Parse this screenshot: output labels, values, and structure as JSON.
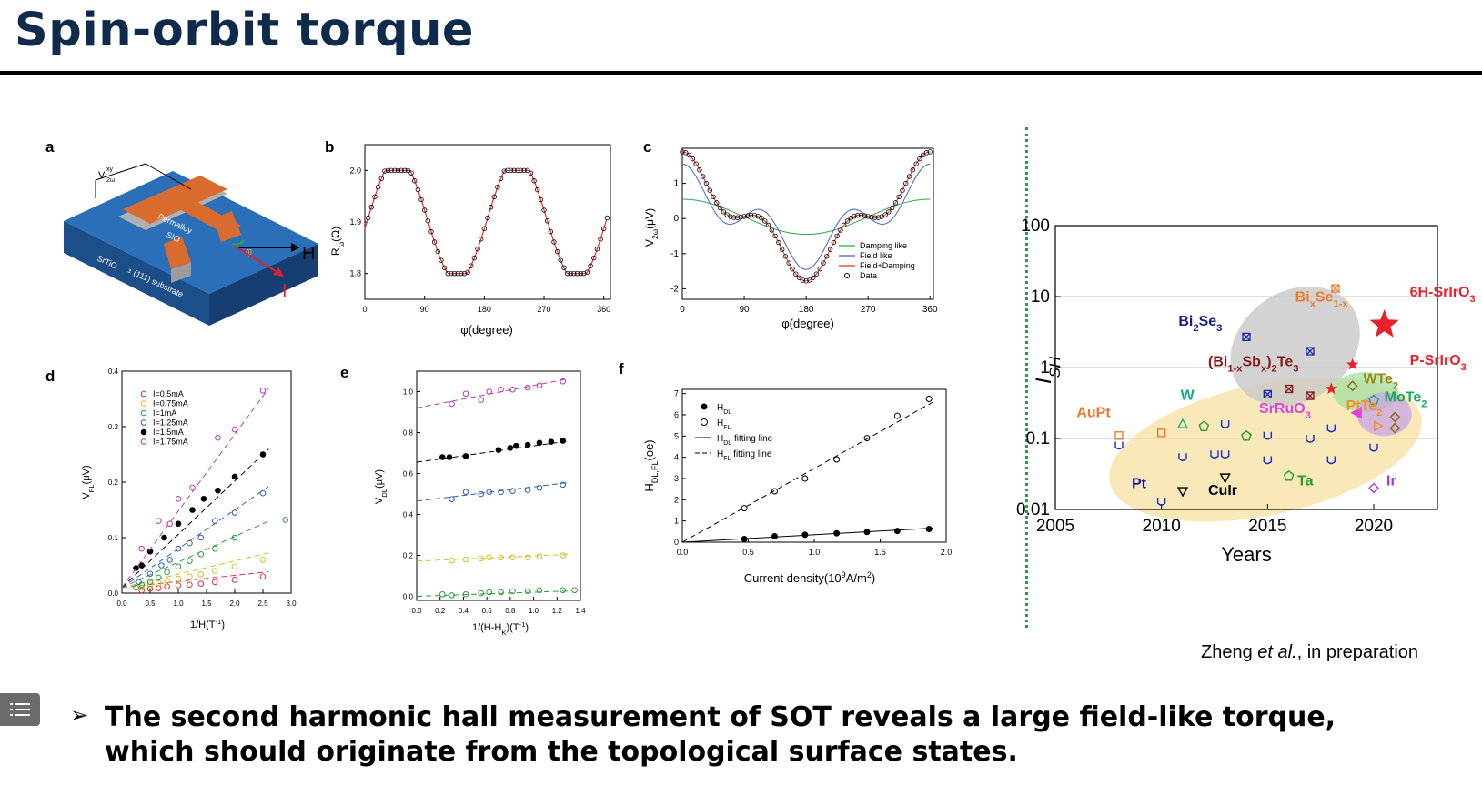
{
  "slide": {
    "title": "Spin-orbit torque",
    "credit_prefix": "Zheng ",
    "credit_italic": "et al.",
    "credit_suffix": ", in preparation",
    "bullet_text": "The second harmonic hall measurement of SOT reveals a large field-like torque, which should originate from the topological surface states.",
    "bullet_marker": "➢"
  },
  "panels": {
    "a": {
      "letter": "a",
      "labels": [
        "V",
        "xy",
        "2ω",
        "Permalloy",
        "SIO",
        "φ",
        "H",
        "I",
        "SrTiO",
        "3",
        "(111) substrate"
      ]
    },
    "b": {
      "letter": "b"
    },
    "c": {
      "letter": "c"
    },
    "d": {
      "letter": "d"
    },
    "e": {
      "letter": "e"
    },
    "f": {
      "letter": "f"
    }
  },
  "colors": {
    "title": "#0f2a4a",
    "separator": "#2c9a48",
    "substrate": "#1c5fa6",
    "film": "#d96b2e",
    "highlight_ellipse": "#f7e0a0"
  },
  "chart_data": [
    {
      "panel": "b",
      "type": "line",
      "xlabel": "φ(degree)",
      "ylabel": "R",
      "ylabel_sub": "ω",
      "ylabel_unit": "(Ω)",
      "xlim": [
        0,
        370
      ],
      "ylim": [
        1.75,
        2.05
      ],
      "xticks": [
        "0",
        "90",
        "180",
        "270",
        "360"
      ],
      "yticks": [
        "1.8",
        "1.9",
        "2.0"
      ],
      "series": [
        {
          "kind": "data-circles",
          "color": "#000"
        },
        {
          "kind": "fit",
          "color": "#e8302a"
        }
      ]
    },
    {
      "panel": "c",
      "type": "line",
      "xlabel": "φ(degree)",
      "ylabel": "V",
      "ylabel_sub": "2ω",
      "ylabel_unit": "(μV)",
      "xlim": [
        0,
        365
      ],
      "ylim": [
        -2.3,
        2.0
      ],
      "xticks": [
        "0",
        "90",
        "180",
        "270",
        "360"
      ],
      "yticks": [
        "-2",
        "-1",
        "0",
        "1"
      ],
      "series": [
        {
          "name": "Damping like",
          "color": "#2ea84a"
        },
        {
          "name": "Field like",
          "color": "#4a5ec8"
        },
        {
          "name": "Field+Damping",
          "color": "#e8302a"
        },
        {
          "name": "Data",
          "color": "#000"
        }
      ]
    },
    {
      "panel": "d",
      "type": "scatter",
      "xlabel": "1/H(T",
      "xlabel_sup": "-1",
      "xlabel_end": ")",
      "ylabel": "V",
      "ylabel_sub": "FL",
      "ylabel_unit": "(μV)",
      "xlim": [
        0,
        3.0
      ],
      "ylim": [
        0,
        0.4
      ],
      "xticks": [
        "0.0",
        "0.5",
        "1.0",
        "1.5",
        "2.0",
        "2.5",
        "3.0"
      ],
      "yticks": [
        "0.0",
        "0.1",
        "0.2",
        "0.3",
        "0.4"
      ],
      "series": [
        {
          "name": "I=0.5mA",
          "color": "#e0333a",
          "filled": false,
          "slope": 0.011,
          "x": [
            0.35,
            0.5,
            0.65,
            0.8,
            1.0,
            1.2,
            1.4,
            1.65,
            2.0,
            2.5
          ],
          "y": [
            0.005,
            0.008,
            0.009,
            0.012,
            0.014,
            0.015,
            0.017,
            0.02,
            0.024,
            0.03
          ]
        },
        {
          "name": "I=0.75mA",
          "color": "#c6c62a",
          "filled": false,
          "slope": 0.024,
          "x": [
            0.35,
            0.5,
            0.65,
            0.8,
            1.0,
            1.2,
            1.4,
            1.65,
            2.0,
            2.5
          ],
          "y": [
            0.01,
            0.014,
            0.018,
            0.022,
            0.026,
            0.03,
            0.034,
            0.04,
            0.048,
            0.06
          ]
        },
        {
          "name": "I=1mA",
          "color": "#2e9a3c",
          "filled": false,
          "slope": 0.046,
          "x": [
            0.25,
            0.35,
            0.5,
            0.65,
            0.8,
            1.0,
            1.2,
            1.4,
            1.65,
            2.0,
            2.9
          ],
          "y": [
            0.01,
            0.015,
            0.02,
            0.028,
            0.038,
            0.048,
            0.058,
            0.07,
            0.08,
            0.1,
            0.132
          ]
        },
        {
          "name": "I=1.25mA",
          "color": "#2d5fb5",
          "filled": false,
          "slope": 0.07,
          "x": [
            0.3,
            0.5,
            0.7,
            0.85,
            1.0,
            1.2,
            1.4,
            1.65,
            2.0,
            2.5
          ],
          "y": [
            0.02,
            0.035,
            0.05,
            0.06,
            0.08,
            0.09,
            0.1,
            0.13,
            0.145,
            0.18
          ]
        },
        {
          "name": "I=1.5mA",
          "color": "#000000",
          "filled": true,
          "slope": 0.096,
          "x": [
            0.25,
            0.35,
            0.5,
            0.75,
            1.0,
            1.25,
            1.45,
            1.7,
            2.0,
            2.5
          ],
          "y": [
            0.045,
            0.05,
            0.075,
            0.1,
            0.125,
            0.15,
            0.17,
            0.185,
            0.21,
            0.25
          ]
        },
        {
          "name": "I=1.75mA",
          "color": "#b83ab0",
          "filled": false,
          "slope": 0.138,
          "x": [
            0.35,
            0.65,
            0.85,
            1.0,
            1.25,
            1.7,
            2.0,
            2.5
          ],
          "y": [
            0.08,
            0.13,
            0.125,
            0.17,
            0.19,
            0.28,
            0.295,
            0.365
          ]
        }
      ]
    },
    {
      "panel": "e",
      "type": "scatter",
      "xlabel": "1/(H-H",
      "xlabel_sub": "K",
      "xlabel_mid": ")(T",
      "xlabel_sup": "-1",
      "xlabel_end": ")",
      "ylabel": "V",
      "ylabel_sub": "DL",
      "ylabel_unit": "(μV)",
      "xlim": [
        0,
        1.4
      ],
      "ylim": [
        -0.02,
        1.1
      ],
      "xticks": [
        "0.0",
        "0.2",
        "0.4",
        "0.6",
        "0.8",
        "1.0",
        "1.2",
        "1.4"
      ],
      "yticks": [
        "0.0",
        "0.2",
        "0.4",
        "0.6",
        "0.8",
        "1.0"
      ],
      "series": [
        {
          "color": "#b83ab0",
          "filled": false,
          "intercept": 0.92,
          "slope": 0.11,
          "x": [
            0.3,
            0.42,
            0.55,
            0.62,
            0.72,
            0.82,
            0.95,
            1.05,
            1.25
          ],
          "y": [
            0.94,
            0.99,
            0.96,
            1.0,
            1.01,
            1.01,
            1.02,
            1.03,
            1.05
          ]
        },
        {
          "color": "#000000",
          "filled": true,
          "intercept": 0.655,
          "slope": 0.08,
          "x": [
            0.22,
            0.28,
            0.42,
            0.7,
            0.8,
            0.85,
            0.95,
            1.05,
            1.15,
            1.25
          ],
          "y": [
            0.68,
            0.68,
            0.685,
            0.715,
            0.725,
            0.735,
            0.74,
            0.75,
            0.755,
            0.76
          ]
        },
        {
          "color": "#2d5fb5",
          "filled": false,
          "intercept": 0.465,
          "slope": 0.07,
          "x": [
            0.3,
            0.42,
            0.55,
            0.62,
            0.72,
            0.82,
            0.95,
            1.05,
            1.25
          ],
          "y": [
            0.475,
            0.51,
            0.5,
            0.51,
            0.51,
            0.515,
            0.52,
            0.53,
            0.545
          ]
        },
        {
          "color": "#c6c62a",
          "filled": false,
          "intercept": 0.172,
          "slope": 0.025,
          "x": [
            0.3,
            0.42,
            0.55,
            0.62,
            0.72,
            0.82,
            0.95,
            1.05,
            1.25
          ],
          "y": [
            0.175,
            0.18,
            0.185,
            0.19,
            0.19,
            0.19,
            0.19,
            0.195,
            0.2
          ]
        },
        {
          "color": "#2e9a3c",
          "filled": false,
          "intercept": 0.0,
          "slope": 0.02,
          "x": [
            0.22,
            0.3,
            0.42,
            0.55,
            0.62,
            0.72,
            0.82,
            0.95,
            1.05,
            1.25,
            1.35
          ],
          "y": [
            0.01,
            0.005,
            0.01,
            0.015,
            0.02,
            0.02,
            0.025,
            0.025,
            0.03,
            0.03,
            0.03
          ]
        }
      ]
    },
    {
      "panel": "f",
      "type": "scatter",
      "xlabel": "Current density(10",
      "xlabel_sup1": "9",
      "xlabel_mid": "A/m",
      "xlabel_sup2": "2",
      "xlabel_end": ")",
      "ylabel": "H",
      "ylabel_sub": "DL,FL",
      "ylabel_unit": "(oe)",
      "xlim": [
        0,
        2.0
      ],
      "ylim": [
        0,
        7.2
      ],
      "xticks": [
        "0.0",
        "0.5",
        "1.0",
        "1.5",
        "2.0"
      ],
      "yticks": [
        "0",
        "1",
        "2",
        "3",
        "4",
        "5",
        "6",
        "7"
      ],
      "legend": [
        {
          "sym": "H",
          "sub": "DL",
          "suffix": "",
          "style": "filled"
        },
        {
          "sym": "H",
          "sub": "FL",
          "suffix": "",
          "style": "open"
        },
        {
          "sym": "H",
          "sub": "DL",
          "suffix": " fitting line",
          "style": "solid"
        },
        {
          "sym": "H",
          "sub": "FL",
          "suffix": " fitting line",
          "style": "dashed"
        }
      ],
      "series": [
        {
          "name": "HDL",
          "filled": true,
          "slope": 0.35,
          "x": [
            0.47,
            0.7,
            0.93,
            1.17,
            1.4,
            1.63,
            1.87
          ],
          "y": [
            0.15,
            0.28,
            0.35,
            0.42,
            0.48,
            0.53,
            0.62
          ]
        },
        {
          "name": "HFL",
          "filled": false,
          "slope": 3.5,
          "x": [
            0.47,
            0.7,
            0.93,
            1.17,
            1.4,
            1.63,
            1.87
          ],
          "y": [
            1.6,
            2.4,
            3.0,
            3.9,
            4.9,
            5.95,
            6.75
          ]
        }
      ]
    },
    {
      "panel": "g",
      "type": "scatter",
      "xlabel": "Years",
      "ylabel": "I",
      "ylabel_sub": "SH",
      "xlim": [
        2005,
        2023
      ],
      "ylim_log": [
        0.01,
        100
      ],
      "xticks": [
        "2005",
        "2010",
        "2015",
        "2020"
      ],
      "yticks": [
        "0.01",
        "0.1",
        "1",
        "10",
        "100"
      ],
      "labels": [
        {
          "text": "6H-SrIrO",
          "sub": "3",
          "color": "#e8202a",
          "x": 2021.7,
          "y": 10
        },
        {
          "text": "P-SrIrO",
          "sub": "3",
          "color": "#e8202a",
          "x": 2021.7,
          "y": 1.1
        },
        {
          "text": "Bi",
          "sub": "x",
          "mid": "Se",
          "sub2": "1-x",
          "color": "#f07a2a",
          "x": 2016.3,
          "y": 8.5
        },
        {
          "text": "Bi",
          "sub": "2",
          "mid": "Se",
          "sub2": "3",
          "color": "#1a1a8a",
          "x": 2010.8,
          "y": 3.9
        },
        {
          "text": "(Bi",
          "sub": "1-x",
          "mid": "Sb",
          "sub2": "x",
          "mid2": ")",
          "sub3": "2",
          "mid3": "Te",
          "sub4": "3",
          "color": "#8a1a1a",
          "x": 2012.2,
          "y": 1.05
        },
        {
          "text": "WTe",
          "sub": "2",
          "color": "#9a8a10",
          "x": 2019.5,
          "y": 0.6
        },
        {
          "text": "MoTe",
          "sub": "2",
          "color": "#1aa860",
          "x": 2020.5,
          "y": 0.33
        },
        {
          "text": "PtTe",
          "sub": "2",
          "color": "#f09030",
          "x": 2018.7,
          "y": 0.25
        },
        {
          "text": "SrRuO",
          "sub": "3",
          "color": "#e040e0",
          "x": 2014.6,
          "y": 0.23
        },
        {
          "text": "W",
          "sub": "",
          "color": "#1aa890",
          "x": 2010.9,
          "y": 0.35
        },
        {
          "text": "AuPt",
          "sub": "",
          "color": "#f07a2a",
          "x": 2006.0,
          "y": 0.2
        },
        {
          "text": "Pt",
          "sub": "",
          "color": "#1a1aa8",
          "x": 2008.6,
          "y": 0.02
        },
        {
          "text": "CuIr",
          "sub": "",
          "color": "#000000",
          "x": 2012.2,
          "y": 0.016
        },
        {
          "text": "Ta",
          "sub": "",
          "color": "#2a9a2a",
          "x": 2016.4,
          "y": 0.022
        },
        {
          "text": "Ir",
          "sub": "",
          "color": "#a040d0",
          "x": 2020.6,
          "y": 0.022
        }
      ],
      "points": [
        {
          "x": 2008,
          "y": 0.08,
          "shape": "cup",
          "color": "#1a2ad0"
        },
        {
          "x": 2010,
          "y": 0.013,
          "shape": "cup",
          "color": "#1a2ad0"
        },
        {
          "x": 2011,
          "y": 0.055,
          "shape": "cup",
          "color": "#1a2ad0"
        },
        {
          "x": 2012.5,
          "y": 0.06,
          "shape": "cup",
          "color": "#1a2ad0"
        },
        {
          "x": 2013,
          "y": 0.16,
          "shape": "cup",
          "color": "#1a2ad0"
        },
        {
          "x": 2013,
          "y": 0.06,
          "shape": "cup",
          "color": "#1a2ad0"
        },
        {
          "x": 2015,
          "y": 0.11,
          "shape": "cup",
          "color": "#1a2ad0"
        },
        {
          "x": 2015,
          "y": 0.05,
          "shape": "cup",
          "color": "#1a2ad0"
        },
        {
          "x": 2017,
          "y": 0.1,
          "shape": "cup",
          "color": "#1a2ad0"
        },
        {
          "x": 2018,
          "y": 0.14,
          "shape": "cup",
          "color": "#1a2ad0"
        },
        {
          "x": 2018,
          "y": 0.05,
          "shape": "cup",
          "color": "#1a2ad0"
        },
        {
          "x": 2020,
          "y": 0.075,
          "shape": "cup",
          "color": "#1a2ad0"
        },
        {
          "x": 2008,
          "y": 0.11,
          "shape": "square",
          "color": "#f07a2a"
        },
        {
          "x": 2010,
          "y": 0.12,
          "shape": "square",
          "color": "#f07a2a"
        },
        {
          "x": 2011,
          "y": 0.16,
          "shape": "triangle",
          "color": "#1aa890"
        },
        {
          "x": 2012,
          "y": 0.15,
          "shape": "pentagon",
          "color": "#2a9a2a"
        },
        {
          "x": 2014,
          "y": 0.11,
          "shape": "pentagon",
          "color": "#2a9a2a"
        },
        {
          "x": 2016,
          "y": 0.03,
          "shape": "pentagon",
          "color": "#2a9a2a"
        },
        {
          "x": 2011,
          "y": 0.018,
          "shape": "triangle-down",
          "color": "#000000"
        },
        {
          "x": 2013,
          "y": 0.028,
          "shape": "triangle-down",
          "color": "#000000"
        },
        {
          "x": 2014,
          "y": 2.7,
          "shape": "xbox",
          "color": "#1a2aa8"
        },
        {
          "x": 2017,
          "y": 1.7,
          "shape": "xbox",
          "color": "#1a2aa8"
        },
        {
          "x": 2015,
          "y": 0.42,
          "shape": "xbox",
          "color": "#1a2aa8"
        },
        {
          "x": 2016,
          "y": 0.5,
          "shape": "xbox",
          "color": "#8a1a1a"
        },
        {
          "x": 2017,
          "y": 0.4,
          "shape": "xbox",
          "color": "#8a1a1a"
        },
        {
          "x": 2018.2,
          "y": 13,
          "shape": "xbox",
          "color": "#f07a2a"
        },
        {
          "x": 2019,
          "y": 0.55,
          "shape": "diamond",
          "color": "#8a6a10"
        },
        {
          "x": 2020,
          "y": 0.35,
          "shape": "pentagon",
          "color": "#1aa860"
        },
        {
          "x": 2021,
          "y": 0.2,
          "shape": "diamond",
          "color": "#8a6a10"
        },
        {
          "x": 2021,
          "y": 0.14,
          "shape": "diamond",
          "color": "#8a6a10"
        },
        {
          "x": 2020.2,
          "y": 0.15,
          "shape": "triangle-right",
          "color": "#f09030"
        },
        {
          "x": 2019.2,
          "y": 0.23,
          "shape": "triangle-left",
          "color": "#e040e0"
        },
        {
          "x": 2020,
          "y": 0.02,
          "shape": "diamond",
          "color": "#a040d0"
        },
        {
          "x": 2020.5,
          "y": 4.0,
          "shape": "star-big",
          "color": "#e8202a"
        },
        {
          "x": 2019,
          "y": 1.1,
          "shape": "star",
          "color": "#e8202a"
        },
        {
          "x": 2018,
          "y": 0.5,
          "shape": "star",
          "color": "#e8202a"
        }
      ]
    }
  ]
}
